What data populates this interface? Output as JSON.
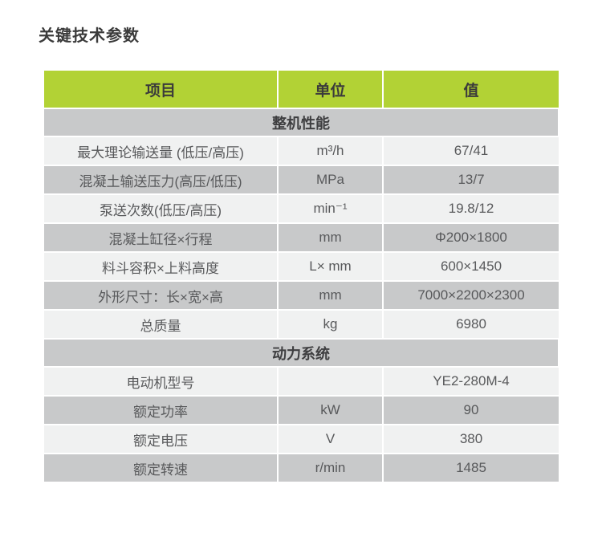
{
  "page": {
    "title": "关键技术参数"
  },
  "colors": {
    "header_green": "#b2d235",
    "row_gray": "#c8c9ca",
    "row_light": "#f0f1f1",
    "heading_text": "#3b3b3b",
    "body_text": "#58595b"
  },
  "table": {
    "columns": [
      {
        "label": "项目"
      },
      {
        "label": "单位"
      },
      {
        "label": "值"
      }
    ],
    "rows": [
      {
        "type": "section",
        "label": "整机性能"
      },
      {
        "type": "data",
        "shade": "light",
        "item": "最大理论输送量 (低压/高压)",
        "unit": "m³/h",
        "value": "67/41"
      },
      {
        "type": "data",
        "shade": "gray",
        "item": "混凝土输送压力(高压/低压)",
        "unit": "MPa",
        "value": "13/7"
      },
      {
        "type": "data",
        "shade": "light",
        "item": "泵送次数(低压/高压)",
        "unit": "min⁻¹",
        "value": "19.8/12"
      },
      {
        "type": "data",
        "shade": "gray",
        "item": "混凝土缸径×行程",
        "unit": "mm",
        "value": "Φ200×1800"
      },
      {
        "type": "data",
        "shade": "light",
        "item": "料斗容积×上料高度",
        "unit": "L× mm",
        "value": "600×1450"
      },
      {
        "type": "data",
        "shade": "gray",
        "item": "外形尺寸：长×宽×高",
        "unit": "mm",
        "value": "7000×2200×2300"
      },
      {
        "type": "data",
        "shade": "light",
        "item": "总质量",
        "unit": "kg",
        "value": "6980"
      },
      {
        "type": "section",
        "label": "动力系统"
      },
      {
        "type": "data",
        "shade": "light",
        "item": "电动机型号",
        "unit": "",
        "value": "YE2-280M-4"
      },
      {
        "type": "data",
        "shade": "gray",
        "item": "额定功率",
        "unit": "kW",
        "value": "90"
      },
      {
        "type": "data",
        "shade": "light",
        "item": "额定电压",
        "unit": "V",
        "value": "380"
      },
      {
        "type": "data",
        "shade": "gray",
        "item": "额定转速",
        "unit": "r/min",
        "value": "1485"
      }
    ]
  }
}
